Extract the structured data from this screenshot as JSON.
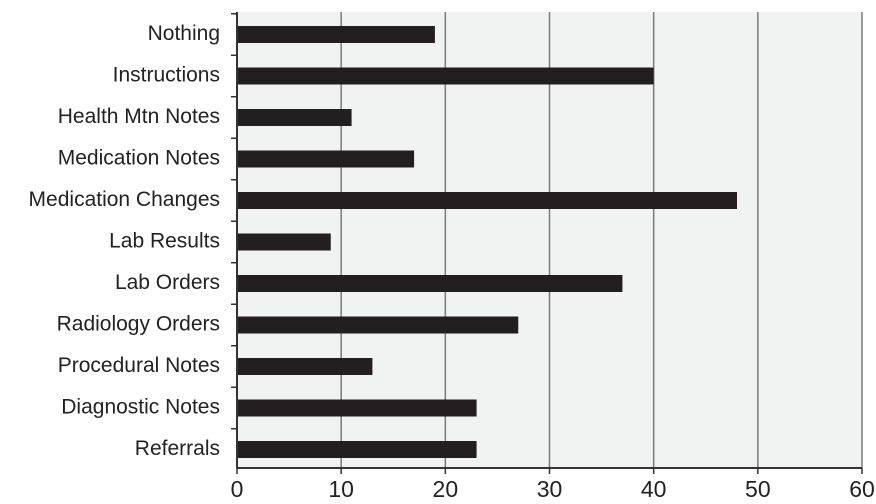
{
  "chart_data": {
    "type": "bar",
    "orientation": "horizontal",
    "title": "",
    "xlabel": "",
    "ylabel": "",
    "categories": [
      "Nothing",
      "Instructions",
      "Health Mtn Notes",
      "Medication Notes",
      "Medication Changes",
      "Lab Results",
      "Lab Orders",
      "Radiology Orders",
      "Procedural Notes",
      "Diagnostic Notes",
      "Referrals"
    ],
    "values": [
      19,
      40,
      11,
      17,
      48,
      9,
      37,
      27,
      13,
      23,
      23
    ],
    "xlim": [
      0,
      60
    ],
    "xticks": [
      0,
      10,
      20,
      30,
      40,
      50,
      60
    ],
    "grid": "vertical",
    "legend": "none",
    "colors": {
      "bar": "#231f20",
      "plot_background": "#f1f3f2",
      "grid": "#7a7a7a",
      "axis": "#333333",
      "text": "#222222"
    }
  }
}
